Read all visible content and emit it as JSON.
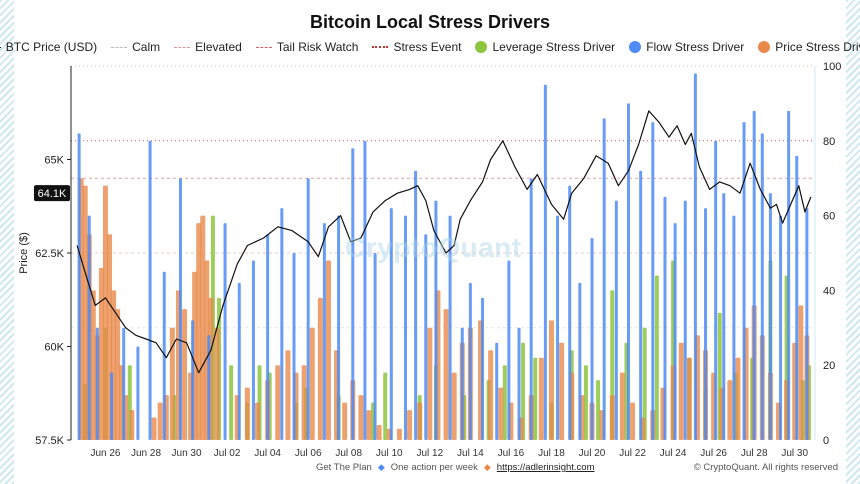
{
  "chart_data": {
    "type": "bar",
    "title": "Bitcoin Local Stress Drivers",
    "ylabel": "Price ($)",
    "ylim": [
      57500,
      67500
    ],
    "y2lim": [
      0,
      100
    ],
    "yticks": [
      "65K",
      "62.5K",
      "60K",
      "57.5K"
    ],
    "ytick_values": [
      65000,
      62500,
      60000,
      57500
    ],
    "y2ticks": [
      0,
      20,
      40,
      60,
      80,
      100
    ],
    "current_price_label": "64.1K",
    "current_price": 64100,
    "xticks": [
      "Jun 26",
      "Jun 28",
      "Jun 30",
      "Jul 02",
      "Jul 04",
      "Jul 06",
      "Jul 08",
      "Jul 10",
      "Jul 12",
      "Jul 14",
      "Jul 16",
      "Jul 18",
      "Jul 20",
      "Jul 22",
      "Jul 24",
      "Jul 26",
      "Jul 28",
      "Jul 30"
    ],
    "x_start_day": 24.3,
    "x_end_day": 30.8,
    "thresholds": [
      {
        "name": "Calm",
        "value": 30
      },
      {
        "name": "Elevated",
        "value": 50
      },
      {
        "name": "Tail Risk Watch",
        "value": 70
      },
      {
        "name": "Stress Event",
        "value": 80
      }
    ],
    "series": [
      {
        "name": "BTC Price (USD)",
        "type": "line",
        "color": "#111111",
        "day": [
          24.6,
          25.1,
          25.5,
          26.0,
          26.5,
          27.0,
          27.5,
          28.0,
          28.5,
          29.0,
          29.5,
          30.0,
          30.6,
          31.2,
          31.8,
          32.5,
          33.0,
          33.8,
          34.5,
          35.2,
          36.0,
          36.5,
          37.0,
          37.6,
          38.1,
          38.6,
          39.2,
          39.8,
          40.4,
          41.0,
          41.4,
          41.8,
          42.2,
          42.8,
          43.2,
          43.5,
          44.0,
          44.6,
          45.0,
          45.6,
          46.2,
          46.8,
          47.3,
          48.0,
          48.6,
          49.0,
          49.6,
          50.2,
          50.8,
          51.3,
          51.8,
          52.3,
          52.8,
          53.3,
          53.8,
          54.2,
          54.6,
          54.9,
          55.3,
          55.8,
          56.3,
          56.8,
          57.3,
          57.8,
          58.3,
          58.8,
          59.1,
          59.4,
          59.8,
          60.2,
          60.5,
          60.8
        ],
        "values": [
          62700,
          61800,
          61100,
          61300,
          60900,
          60500,
          60300,
          60200,
          60100,
          59700,
          60200,
          60100,
          59300,
          59900,
          61100,
          62200,
          62700,
          62900,
          63200,
          63100,
          62800,
          62400,
          63200,
          63500,
          62800,
          62900,
          63600,
          63900,
          64100,
          64200,
          64300,
          63900,
          63100,
          62500,
          62700,
          63400,
          63900,
          64400,
          65000,
          65500,
          64800,
          64200,
          64600,
          63800,
          63400,
          64100,
          64500,
          65100,
          64900,
          64300,
          64700,
          65400,
          66300,
          66000,
          65600,
          65900,
          65400,
          65700,
          64800,
          64200,
          64400,
          64300,
          64100,
          64900,
          64200,
          63700,
          63800,
          63300,
          63800,
          64300,
          63600,
          64000
        ]
      },
      {
        "name": "Leverage Stress Driver",
        "type": "bar",
        "color": "#8cc63f",
        "day": [
          25.0,
          26.0,
          27.2,
          29.4,
          31.3,
          31.6,
          32.2,
          33.0,
          33.6,
          34.1,
          35.4,
          35.9,
          37.5,
          39.2,
          39.8,
          41.5,
          42.3,
          43.7,
          44.9,
          45.7,
          46.6,
          47.2,
          48.0,
          49.0,
          49.7,
          50.3,
          51.0,
          51.7,
          52.6,
          53.2,
          54.0,
          54.8,
          55.6,
          56.3,
          57.1,
          57.9,
          58.8,
          59.6,
          60.4,
          60.7
        ],
        "values": [
          15,
          30,
          20,
          12,
          60,
          38,
          20,
          10,
          20,
          18,
          10,
          14,
          12,
          10,
          18,
          12,
          20,
          12,
          16,
          20,
          26,
          22,
          10,
          24,
          20,
          16,
          40,
          26,
          30,
          44,
          48,
          22,
          14,
          34,
          18,
          22,
          48,
          44,
          16,
          20
        ]
      },
      {
        "name": "Flow Stress Driver",
        "type": "bar",
        "color": "#4e8bf5",
        "day": [
          24.7,
          25.2,
          25.6,
          26.3,
          26.9,
          27.6,
          28.2,
          28.9,
          29.7,
          30.3,
          31.1,
          31.9,
          32.6,
          33.3,
          34.0,
          34.7,
          35.3,
          36.0,
          36.8,
          37.5,
          38.2,
          38.8,
          39.3,
          40.1,
          40.8,
          41.3,
          41.8,
          42.3,
          43.0,
          43.6,
          44.0,
          44.6,
          45.3,
          45.9,
          46.4,
          47.0,
          47.7,
          48.3,
          48.9,
          49.4,
          50.0,
          50.6,
          51.2,
          51.8,
          52.4,
          53.0,
          53.6,
          54.1,
          54.6,
          55.1,
          55.6,
          56.1,
          56.5,
          57.0,
          57.5,
          58.0,
          58.4,
          58.8,
          59.3,
          59.7,
          60.1,
          60.6
        ],
        "values": [
          82,
          60,
          30,
          18,
          30,
          25,
          80,
          45,
          70,
          32,
          28,
          58,
          42,
          48,
          55,
          62,
          50,
          70,
          58,
          60,
          78,
          80,
          50,
          62,
          60,
          72,
          55,
          64,
          60,
          30,
          42,
          38,
          26,
          48,
          30,
          70,
          95,
          60,
          68,
          42,
          54,
          86,
          64,
          90,
          72,
          85,
          65,
          58,
          64,
          98,
          62,
          80,
          66,
          60,
          85,
          88,
          82,
          66,
          60,
          88,
          76,
          62
        ]
      },
      {
        "name": "Price Stress Driver",
        "type": "bar",
        "color": "#e8894a",
        "day": [
          24.8,
          25.0,
          25.2,
          25.4,
          25.6,
          25.8,
          26.0,
          26.2,
          26.4,
          26.6,
          26.8,
          27.0,
          27.3,
          28.4,
          28.7,
          29.0,
          29.3,
          29.6,
          29.9,
          30.2,
          30.4,
          30.6,
          30.8,
          31.0,
          31.2,
          31.5,
          32.5,
          33.0,
          33.5,
          34.0,
          34.5,
          35.0,
          35.4,
          35.8,
          36.2,
          36.6,
          37.0,
          37.4,
          37.8,
          38.2,
          38.6,
          39.0,
          39.5,
          40.0,
          40.5,
          41.0,
          41.5,
          42.0,
          42.4,
          42.8,
          43.2,
          43.6,
          44.0,
          44.5,
          45.0,
          45.5,
          46.0,
          46.5,
          47.0,
          47.5,
          48.0,
          48.5,
          49.0,
          49.5,
          50.0,
          50.5,
          51.0,
          51.5,
          52.0,
          52.5,
          53.0,
          53.5,
          54.0,
          54.4,
          54.8,
          55.2,
          55.6,
          56.0,
          56.4,
          56.8,
          57.2,
          57.6,
          58.0,
          58.4,
          58.8,
          59.2,
          59.6,
          60.0,
          60.3,
          60.6
        ],
        "values": [
          70,
          68,
          55,
          40,
          28,
          46,
          68,
          55,
          40,
          35,
          20,
          12,
          8,
          6,
          10,
          12,
          30,
          40,
          35,
          18,
          45,
          58,
          60,
          48,
          38,
          30,
          12,
          14,
          10,
          16,
          20,
          24,
          18,
          20,
          30,
          38,
          48,
          24,
          10,
          16,
          12,
          8,
          4,
          3,
          3,
          8,
          10,
          30,
          40,
          35,
          18,
          26,
          30,
          32,
          24,
          14,
          10,
          6,
          12,
          22,
          32,
          26,
          18,
          12,
          10,
          8,
          12,
          18,
          10,
          6,
          8,
          14,
          20,
          26,
          22,
          28,
          24,
          18,
          14,
          16,
          22,
          30,
          36,
          28,
          18,
          10,
          16,
          26,
          36,
          28
        ]
      }
    ]
  },
  "watermark": "CryptoQuant",
  "footer": {
    "plan_text": "Get The Plan",
    "tagline": "One action per week",
    "url": "https://adlerinsight.com",
    "copyright": "© CryptoQuant. All rights reserved",
    "gem_left": "◆",
    "gem_right": "◆"
  }
}
